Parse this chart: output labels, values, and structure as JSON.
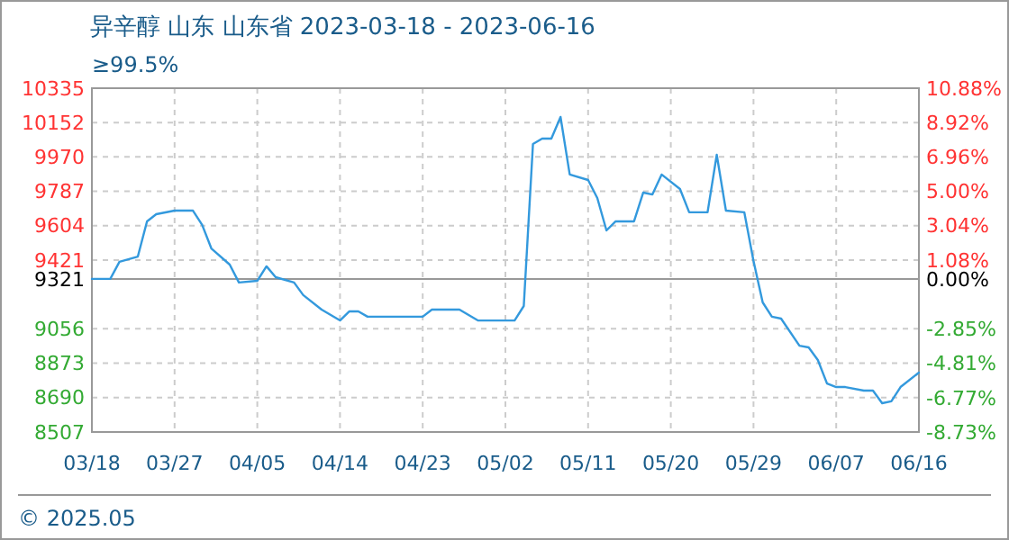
{
  "chart_data": {
    "type": "line",
    "title": "异辛醇 山东 山东省 2023-03-18 - 2023-06-16",
    "subtitle": "≥99.5%",
    "annotations": [
      "© 2025.05"
    ],
    "x": [
      "2023-03-18",
      "2023-03-20",
      "2023-03-21",
      "2023-03-23",
      "2023-03-24",
      "2023-03-25",
      "2023-03-27",
      "2023-03-29",
      "2023-03-30",
      "2023-03-31",
      "2023-04-02",
      "2023-04-03",
      "2023-04-05",
      "2023-04-06",
      "2023-04-07",
      "2023-04-09",
      "2023-04-10",
      "2023-04-12",
      "2023-04-14",
      "2023-04-15",
      "2023-04-16",
      "2023-04-17",
      "2023-04-23",
      "2023-04-24",
      "2023-04-27",
      "2023-04-29",
      "2023-05-03",
      "2023-05-04",
      "2023-05-05",
      "2023-05-06",
      "2023-05-07",
      "2023-05-08",
      "2023-05-09",
      "2023-05-11",
      "2023-05-12",
      "2023-05-13",
      "2023-05-14",
      "2023-05-16",
      "2023-05-17",
      "2023-05-18",
      "2023-05-19",
      "2023-05-21",
      "2023-05-22",
      "2023-05-24",
      "2023-05-25",
      "2023-05-26",
      "2023-05-28",
      "2023-05-29",
      "2023-05-30",
      "2023-05-31",
      "2023-06-01",
      "2023-06-03",
      "2023-06-04",
      "2023-06-05",
      "2023-06-06",
      "2023-06-07",
      "2023-06-08",
      "2023-06-10",
      "2023-06-11",
      "2023-06-12",
      "2023-06-13",
      "2023-06-14",
      "2023-06-16"
    ],
    "series": [
      {
        "color": "#3399dd",
        "values": [
          9321,
          9321,
          9412,
          9440,
          9627,
          9665,
          9684,
          9684,
          9608,
          9483,
          9397,
          9302,
          9311,
          9388,
          9330,
          9302,
          9235,
          9158,
          9100,
          9148,
          9148,
          9120,
          9120,
          9158,
          9158,
          9100,
          9100,
          9177,
          10038,
          10067,
          10067,
          10182,
          9876,
          9847,
          9751,
          9579,
          9627,
          9627,
          9780,
          9770,
          9876,
          9799,
          9675,
          9675,
          9981,
          9684,
          9675,
          9416,
          9196,
          9120,
          9110,
          8966,
          8957,
          8890,
          8765,
          8746,
          8746,
          8727,
          8727,
          8660,
          8670,
          8746,
          8823
        ]
      }
    ],
    "xlim": [
      "2023-03-18",
      "2023-06-16"
    ],
    "xticks": [
      {
        "value": "2023-03-18",
        "label": "03/18"
      },
      {
        "value": "2023-03-27",
        "label": "03/27"
      },
      {
        "value": "2023-04-05",
        "label": "04/05"
      },
      {
        "value": "2023-04-14",
        "label": "04/14"
      },
      {
        "value": "2023-04-23",
        "label": "04/23"
      },
      {
        "value": "2023-05-02",
        "label": "05/02"
      },
      {
        "value": "2023-05-11",
        "label": "05/11"
      },
      {
        "value": "2023-05-20",
        "label": "05/20"
      },
      {
        "value": "2023-05-29",
        "label": "05/29"
      },
      {
        "value": "2023-06-07",
        "label": "06/07"
      },
      {
        "value": "2023-06-16",
        "label": "06/16"
      }
    ],
    "ylim": [
      8507,
      10335
    ],
    "yticks": [
      8507,
      8690,
      8873,
      9056,
      9321,
      9421,
      9604,
      9787,
      9970,
      10152,
      10335
    ],
    "y2lim": [
      -8.73,
      10.88
    ],
    "y2ticks": [
      {
        "value": -8.73,
        "label": "-8.73%"
      },
      {
        "value": -6.77,
        "label": "-6.77%"
      },
      {
        "value": -4.81,
        "label": "-4.81%"
      },
      {
        "value": -2.85,
        "label": "-2.85%"
      },
      {
        "value": 0,
        "label": "0.00%"
      },
      {
        "value": 1.08,
        "label": "1.08%"
      },
      {
        "value": 3.04,
        "label": "3.04%"
      },
      {
        "value": 5,
        "label": "5.00%"
      },
      {
        "value": 6.96,
        "label": "6.96%"
      },
      {
        "value": 8.92,
        "label": "8.92%"
      },
      {
        "value": 10.88,
        "label": "10.88%"
      }
    ],
    "ref_lines": [
      {
        "axis": "y",
        "value": 9321,
        "color": "#999999"
      }
    ],
    "grid": true,
    "marker": "none",
    "line_style": "solid"
  }
}
